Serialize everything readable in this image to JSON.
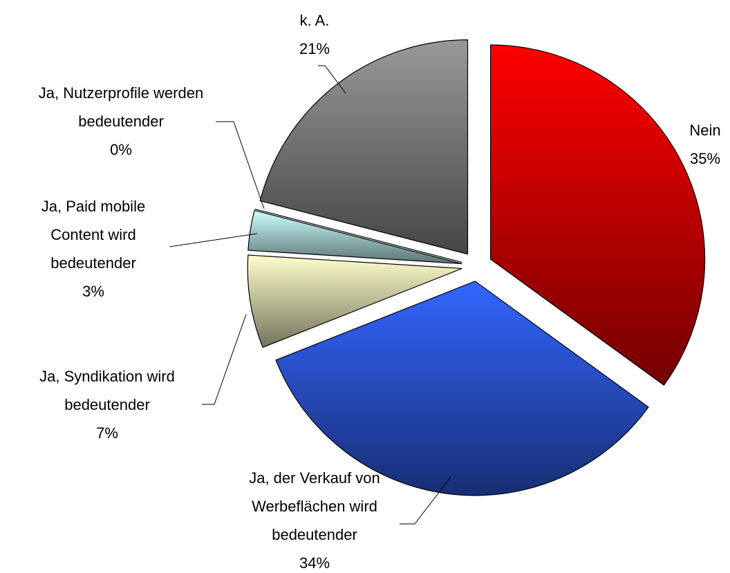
{
  "chart_data": {
    "type": "pie",
    "categories": [
      "Nein",
      "Ja, der Verkauf von Werbeflächen wird bedeutender",
      "Ja, Syndikation wird bedeutender",
      "Ja, Paid mobile Content wird bedeutender",
      "Ja, Nutzerprofile werden bedeutender",
      "k. A."
    ],
    "values": [
      35,
      34,
      7,
      3,
      0,
      21
    ],
    "value_labels": [
      "35%",
      "34%",
      "7%",
      "3%",
      "0%",
      "21%"
    ],
    "colors": [
      "#ff0000",
      "#3366ff",
      "#ffffcc",
      "#ccffff",
      "#b0b0b0",
      "#999999"
    ]
  }
}
